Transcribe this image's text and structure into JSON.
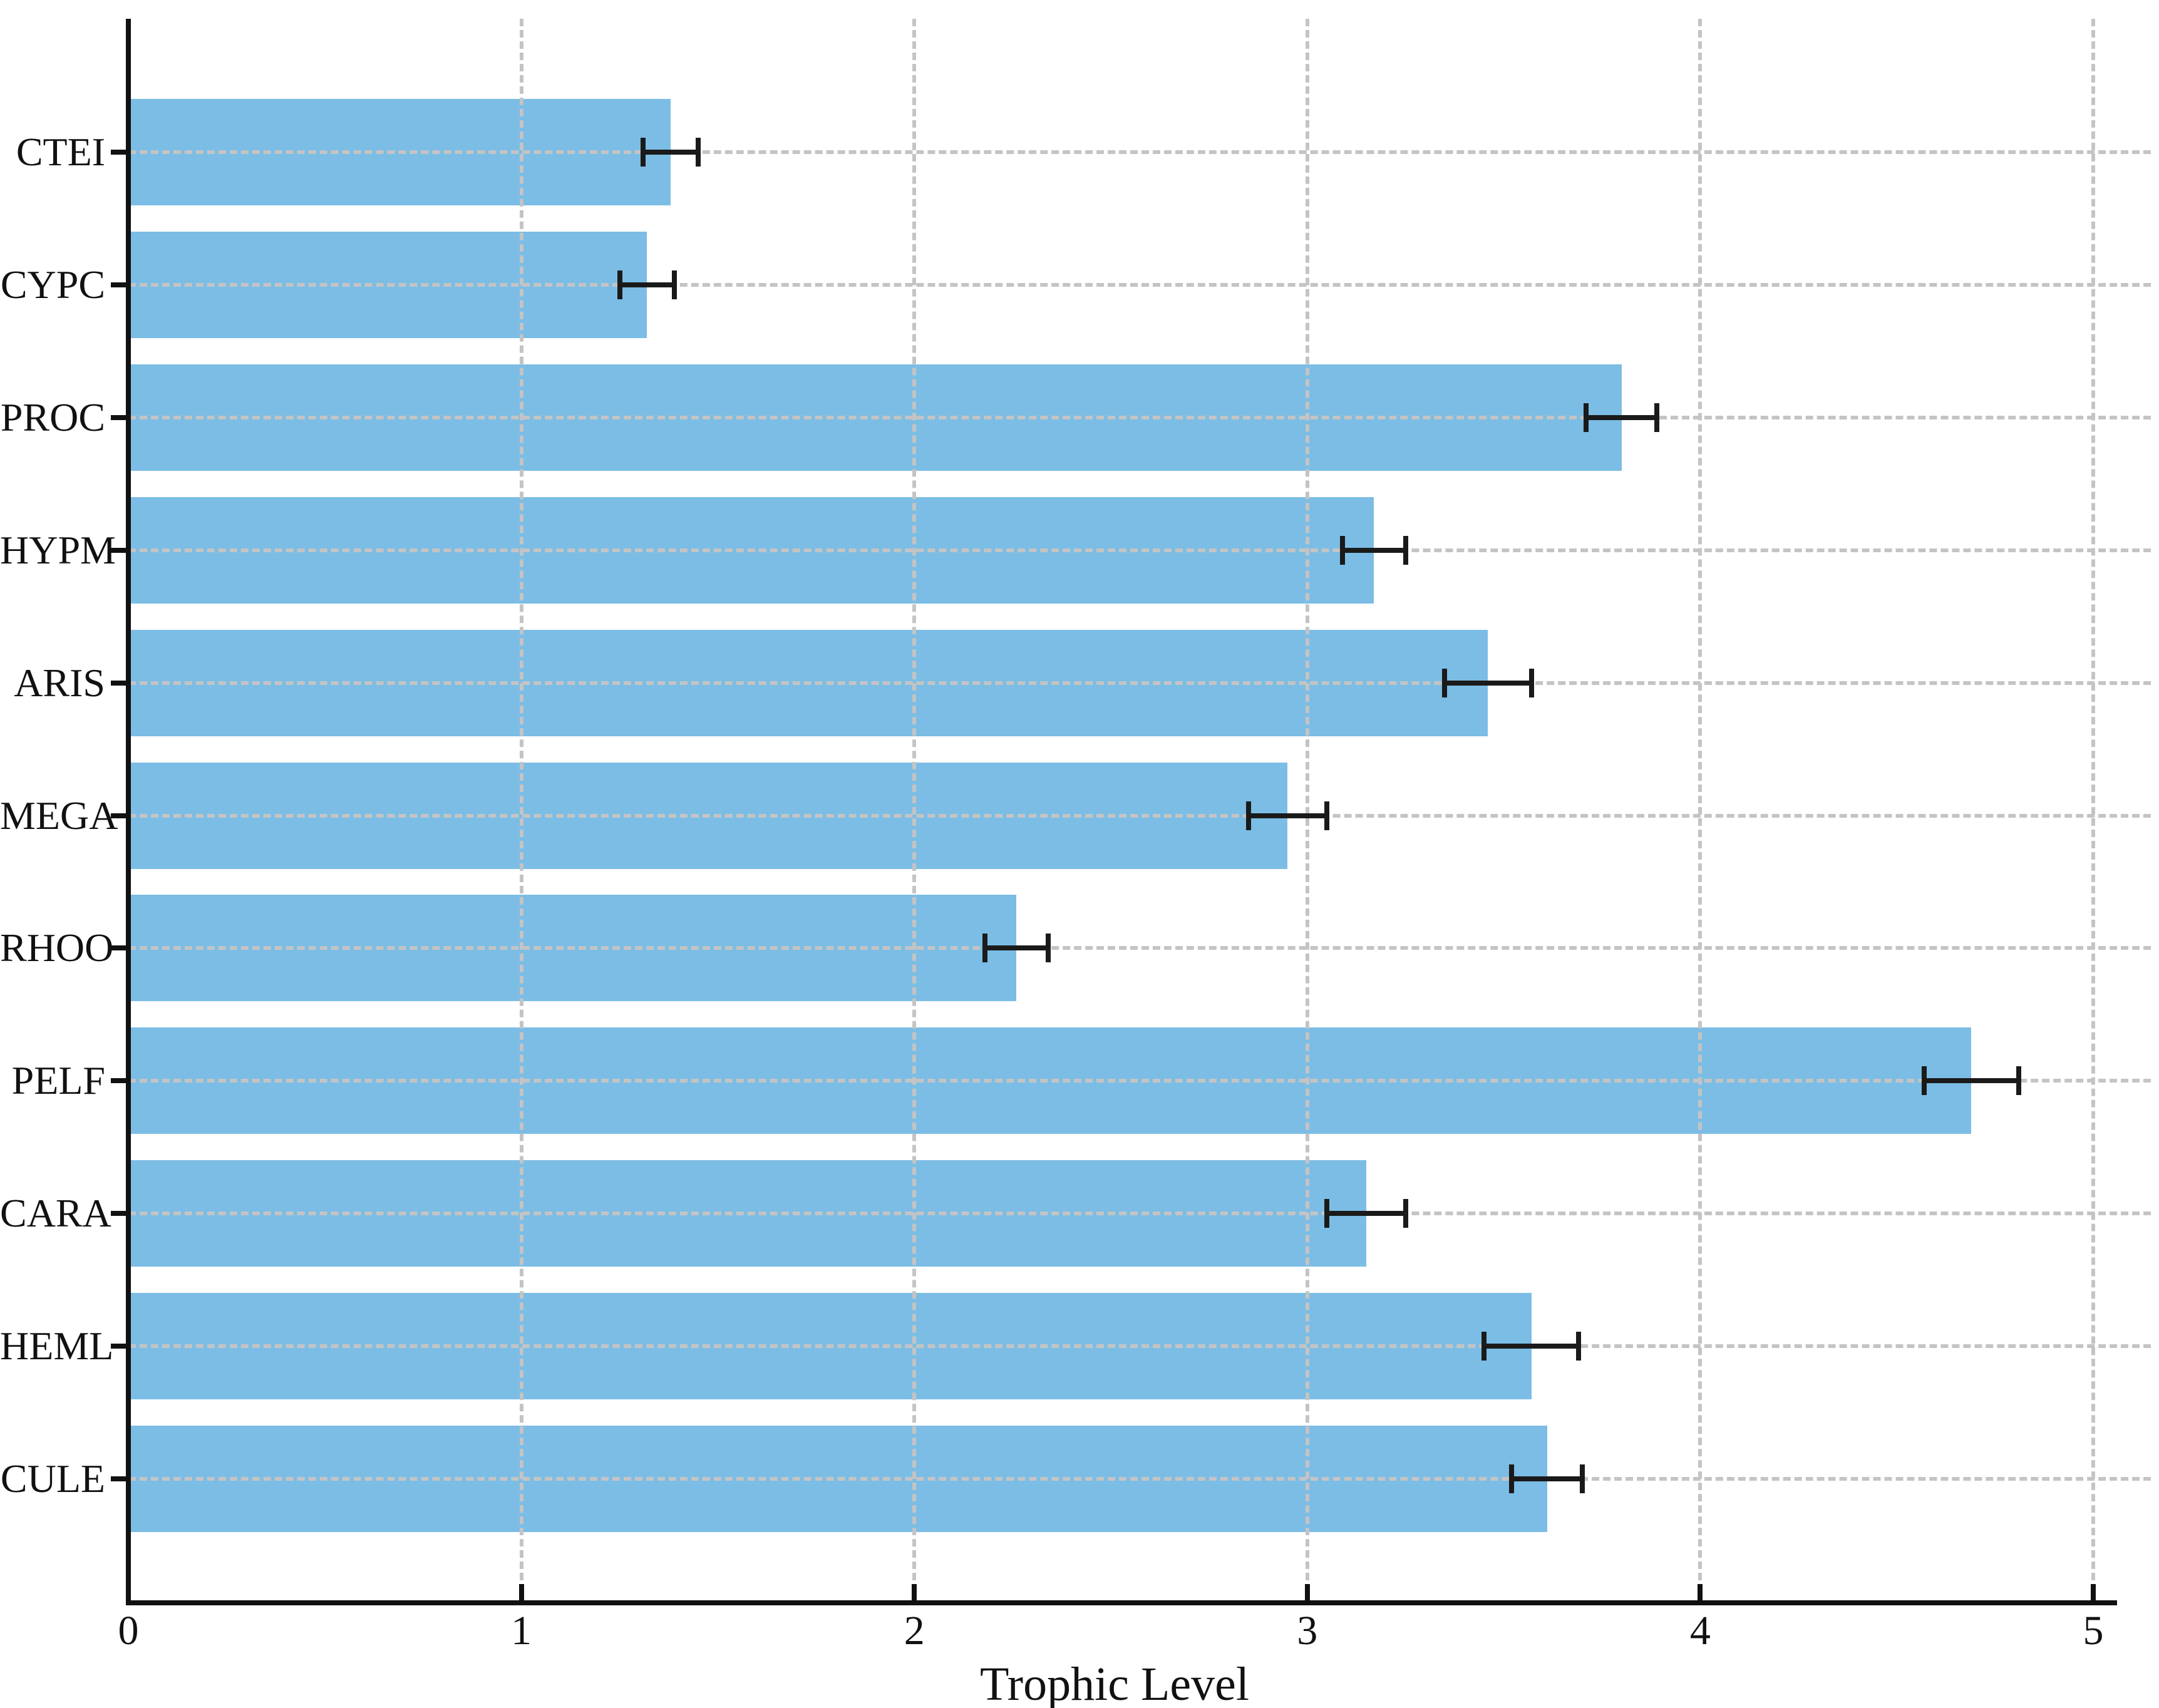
{
  "chart_data": {
    "type": "bar",
    "orientation": "horizontal",
    "title": "",
    "xlabel": "Trophic Level",
    "ylabel": "",
    "xlim": [
      0,
      5
    ],
    "x_ticks": [
      "0",
      "1",
      "2",
      "3",
      "4",
      "5"
    ],
    "grid": "dashed-both-axes",
    "legend": "none",
    "categories": [
      "CTEI",
      "CYPC",
      "PROC",
      "HYPM",
      "ARIS",
      "MEGA",
      "RHOO",
      "PELF",
      "CARA",
      "HEML",
      "CULE"
    ],
    "values": [
      1.38,
      1.32,
      3.8,
      3.17,
      3.46,
      2.95,
      2.26,
      4.69,
      3.15,
      3.57,
      3.61
    ],
    "errors": [
      0.07,
      0.07,
      0.09,
      0.08,
      0.11,
      0.1,
      0.08,
      0.12,
      0.1,
      0.12,
      0.09
    ],
    "bar_color": "#7bbde5",
    "error_bar_color": "#1a1a1a",
    "grid_color": "#c4c4c4",
    "axis_color": "#111111",
    "background_color": "#ffffff"
  }
}
